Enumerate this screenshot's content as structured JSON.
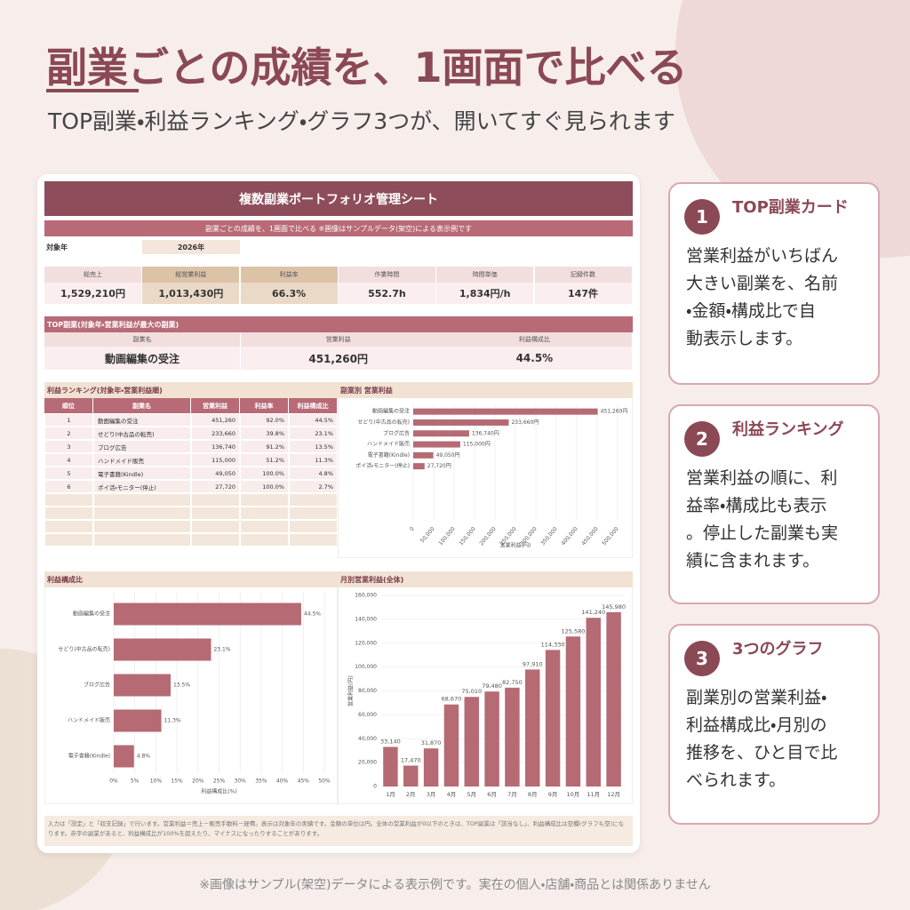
{
  "header": {
    "title": "副業ごとの成績を、1画面で比べる",
    "subtitle": "TOP副業・利益ランキング・グラフ3つが、開いてすぐ見られます"
  },
  "sheet": {
    "title": "複数副業ポートフォリオ管理シート",
    "subtitle": "副業ごとの成績を、1画面で比べる ※画像はサンプルデータ(架空)による表示例です",
    "year_label": "対象年",
    "year": "2026年",
    "kpis": [
      {
        "label": "総売上",
        "value": "1,529,210円"
      },
      {
        "label": "総営業利益",
        "value": "1,013,430円"
      },
      {
        "label": "利益率",
        "value": "66.3%"
      },
      {
        "label": "作業時間",
        "value": "552.7h"
      },
      {
        "label": "時間単価",
        "value": "1,834円/h"
      },
      {
        "label": "記録件数",
        "value": "147件"
      }
    ],
    "top": {
      "title": "TOP副業(対象年・営業利益が最大の副業)",
      "columns": [
        "副業名",
        "営業利益",
        "利益構成比"
      ],
      "values": [
        "動画編集の受注",
        "451,260円",
        "44.5%"
      ]
    },
    "ranking": {
      "title": "利益ランキング(対象年・営業利益順)",
      "columns": [
        "順位",
        "副業名",
        "営業利益",
        "利益率",
        "利益構成比"
      ],
      "rows": [
        [
          "1",
          "動画編集の受注",
          "451,260",
          "92.0%",
          "44.5%"
        ],
        [
          "2",
          "せどり(中古品の転売)",
          "233,660",
          "39.8%",
          "23.1%"
        ],
        [
          "3",
          "ブログ広告",
          "136,740",
          "91.2%",
          "13.5%"
        ],
        [
          "4",
          "ハンドメイド販売",
          "115,000",
          "51.2%",
          "11.3%"
        ],
        [
          "5",
          "電子書籍(Kindle)",
          "49,050",
          "100.0%",
          "4.8%"
        ],
        [
          "6",
          "ポイ活・モニター(停止)",
          "27,720",
          "100.0%",
          "2.7%"
        ]
      ]
    },
    "note": "入力は「設定」と「収支記録」で行います。営業利益＝売上－販売手数料－経費。表示は対象年の実績です。金額の単位は円。全体の営業利益が0以下のときは、TOP副業は「該当なし」、利益構成比は空欄(グラフも空)になります。赤字の副業があると、利益構成比が100%を超えたり、マイナスになったりすることがあります。"
  },
  "chart_data": [
    {
      "type": "bar",
      "orientation": "horizontal",
      "title": "副業別 営業利益",
      "x_label": "営業利益(円)",
      "color": "#b56a74",
      "grid": true,
      "categories": [
        "動画編集の受注",
        "せどり(中古品の転売)",
        "ブログ広告",
        "ハンドメイド販売",
        "電子書籍(Kindle)",
        "ポイ活・モニター(停止)"
      ],
      "values": [
        451260,
        233660,
        136740,
        115000,
        49050,
        27720
      ],
      "value_labels": [
        "451,260円",
        "233,660円",
        "136,740円",
        "115,000円",
        "49,050円",
        "27,720円"
      ],
      "xlim": [
        0,
        500000
      ],
      "xticks": [
        0,
        {
          "value": 50000,
          "label": "50,000"
        },
        {
          "value": 100000,
          "label": "100,000"
        },
        {
          "value": 150000,
          "label": "150,000"
        },
        {
          "value": 200000,
          "label": "200,000"
        },
        {
          "value": 250000,
          "label": "250,000"
        },
        {
          "value": 300000,
          "label": "300,000"
        },
        {
          "value": 350000,
          "label": "350,000"
        },
        {
          "value": 400000,
          "label": "400,000"
        },
        {
          "value": 450000,
          "label": "450,000"
        },
        {
          "value": 500000,
          "label": "500,000"
        }
      ]
    },
    {
      "type": "bar",
      "orientation": "horizontal",
      "title": "利益構成比",
      "x_label": "利益構成比(%)",
      "color": "#b56a74",
      "grid": true,
      "categories": [
        "動画編集の受注",
        "せどり(中古品の転売)",
        "ブログ広告",
        "ハンドメイド販売",
        "電子書籍(Kindle)"
      ],
      "values": [
        44.5,
        23.1,
        13.5,
        11.3,
        4.8
      ],
      "value_labels": [
        "44.5%",
        "23.1%",
        "13.5%",
        "11.3%",
        "4.8%"
      ],
      "xlim": [
        0,
        50
      ],
      "xticks": [
        {
          "value": 0,
          "label": "0%"
        },
        {
          "value": 5,
          "label": "5%"
        },
        {
          "value": 10,
          "label": "10%"
        },
        {
          "value": 15,
          "label": "15%"
        },
        {
          "value": 20,
          "label": "20%"
        },
        {
          "value": 25,
          "label": "25%"
        },
        {
          "value": 30,
          "label": "30%"
        },
        {
          "value": 35,
          "label": "35%"
        },
        {
          "value": 40,
          "label": "40%"
        },
        {
          "value": 45,
          "label": "45%"
        },
        {
          "value": 50,
          "label": "50%"
        }
      ]
    },
    {
      "type": "bar",
      "orientation": "vertical",
      "title": "月別営業利益(全体)",
      "y_label": "営業利益(円)",
      "color": "#b56a74",
      "grid": true,
      "categories": [
        "1月",
        "2月",
        "3月",
        "4月",
        "5月",
        "6月",
        "7月",
        "8月",
        "9月",
        "10月",
        "11月",
        "12月"
      ],
      "values": [
        33140,
        17470,
        31870,
        68670,
        75010,
        79480,
        82750,
        97910,
        114330,
        125580,
        141240,
        145980
      ],
      "value_labels": [
        "33,140",
        "17,470",
        "31,870",
        "68,670",
        "75,010",
        "79,480",
        "82,750",
        "97,910",
        "114,330",
        "125,580",
        "141,240",
        "145,980"
      ],
      "ylim": [
        0,
        160000
      ],
      "yticks": [
        0,
        {
          "value": 20000,
          "label": "20,000"
        },
        {
          "value": 40000,
          "label": "40,000"
        },
        {
          "value": 60000,
          "label": "60,000"
        },
        {
          "value": 80000,
          "label": "80,000"
        },
        {
          "value": 100000,
          "label": "100,000"
        },
        {
          "value": 120000,
          "label": "120,000"
        },
        {
          "value": 140000,
          "label": "140,000"
        },
        {
          "value": 160000,
          "label": "160,000"
        }
      ]
    }
  ],
  "cards": [
    {
      "number": "1",
      "title": "TOP副業カード",
      "body": [
        "営業利益がいちばん",
        "大きい副業を、名前",
        "・金額・構成比で自",
        "動表示します。"
      ]
    },
    {
      "number": "2",
      "title": "利益ランキング",
      "body": [
        "営業利益の順に、利",
        "益率・構成比も表示",
        "。停止した副業も実",
        "績に含まれます。"
      ]
    },
    {
      "number": "3",
      "title": "3つのグラフ",
      "body": [
        "副業別の営業利益・",
        "利益構成比・月別の",
        "推移を、ひと目で比",
        "べられます。"
      ]
    }
  ],
  "footer": "※画像はサンプル(架空)データによる表示例です。実在の個人・店舗・商品とは関係ありません"
}
